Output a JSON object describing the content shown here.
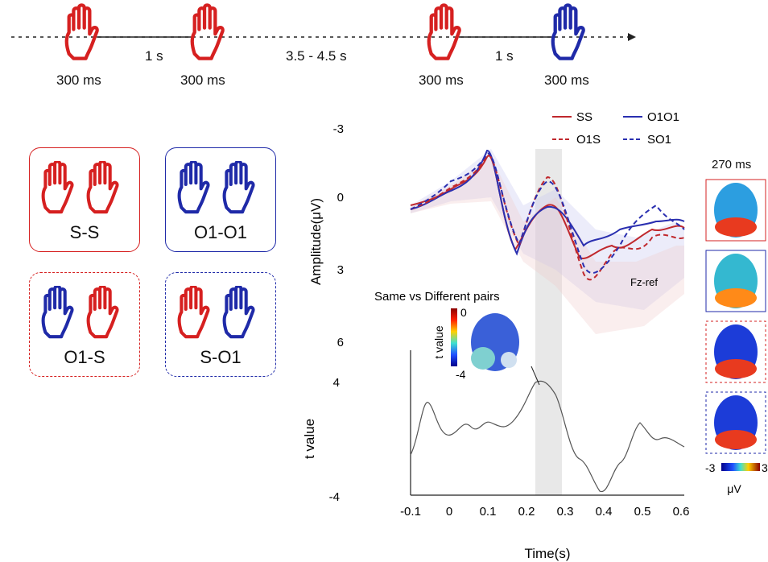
{
  "timeline": {
    "durations": [
      "300 ms",
      "300 ms",
      "300 ms",
      "300 ms"
    ],
    "intervals": [
      "1 s",
      "3.5 - 4.5 s",
      "1 s"
    ]
  },
  "conditions": [
    {
      "label": "S-S"
    },
    {
      "label": "O1-O1"
    },
    {
      "label": "O1-S"
    },
    {
      "label": "S-O1"
    }
  ],
  "colors": {
    "self": "#d62020",
    "other": "#1f2aa8",
    "ss_line": "#c0282d",
    "oo_line": "#2a2fb0"
  },
  "erp_plot": {
    "ylabel": "Amplitude(μV)",
    "yticks": [
      "-3",
      "0",
      "3",
      "6"
    ],
    "ref_label": "Fz-ref",
    "legend": [
      "SS",
      "O1O1",
      "O1S",
      "SO1"
    ]
  },
  "tvalue_plot": {
    "title": "Same vs Different pairs",
    "ylabel": "t value",
    "yticks": [
      "4",
      "-4"
    ],
    "xlabel": "Time(s)",
    "xticks": [
      "-0.1",
      "0",
      "0.1",
      "0.2",
      "0.3",
      "0.4",
      "0.5",
      "0.6"
    ],
    "inset_colorbar_label": "t value",
    "inset_colorbar_ticks": [
      "0",
      "-4"
    ]
  },
  "topomaps": {
    "title": "270 ms",
    "colorbar_ticks": [
      "-3",
      "3"
    ],
    "colorbar_unit": "μV"
  }
}
